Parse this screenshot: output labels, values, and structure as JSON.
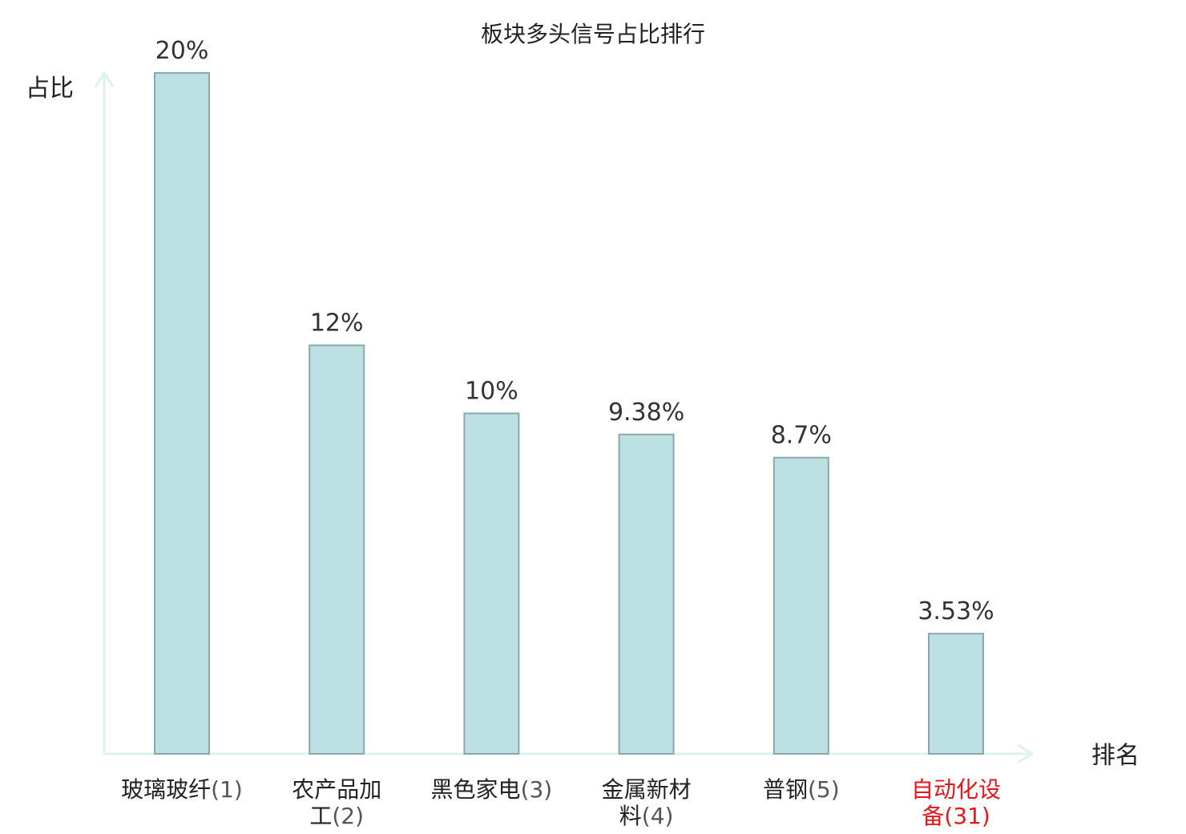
{
  "chart_data": {
    "type": "bar",
    "title": "板块多头信号占比排行",
    "ylabel": "占比",
    "xlabel": "排名",
    "ylim": [
      0,
      20
    ],
    "grid": false,
    "categories": [
      {
        "name": "玻璃玻纤",
        "rank": "(1)",
        "lines": [
          "玻璃玻纤"
        ],
        "highlight": false
      },
      {
        "name": "农产品加工",
        "rank": "(2)",
        "lines": [
          "农产品加",
          "工"
        ],
        "highlight": false
      },
      {
        "name": "黑色家电",
        "rank": "(3)",
        "lines": [
          "黑色家电"
        ],
        "highlight": false
      },
      {
        "name": "金属新材料",
        "rank": "(4)",
        "lines": [
          "金属新材",
          "料"
        ],
        "highlight": false
      },
      {
        "name": "普钢",
        "rank": "(5)",
        "lines": [
          "普钢"
        ],
        "highlight": false
      },
      {
        "name": "自动化设备",
        "rank": "(31)",
        "lines": [
          "自动化设",
          "备"
        ],
        "highlight": true
      }
    ],
    "values": [
      20,
      12,
      10,
      9.38,
      8.7,
      3.53
    ],
    "value_labels": [
      "20%",
      "12%",
      "10%",
      "9.38%",
      "8.7%",
      "3.53%"
    ]
  },
  "colors": {
    "bar_fill": "#bde0e2",
    "bar_stroke": "#8aa8aa",
    "axis": "#ddf2ee",
    "highlight": "#e8151b"
  }
}
